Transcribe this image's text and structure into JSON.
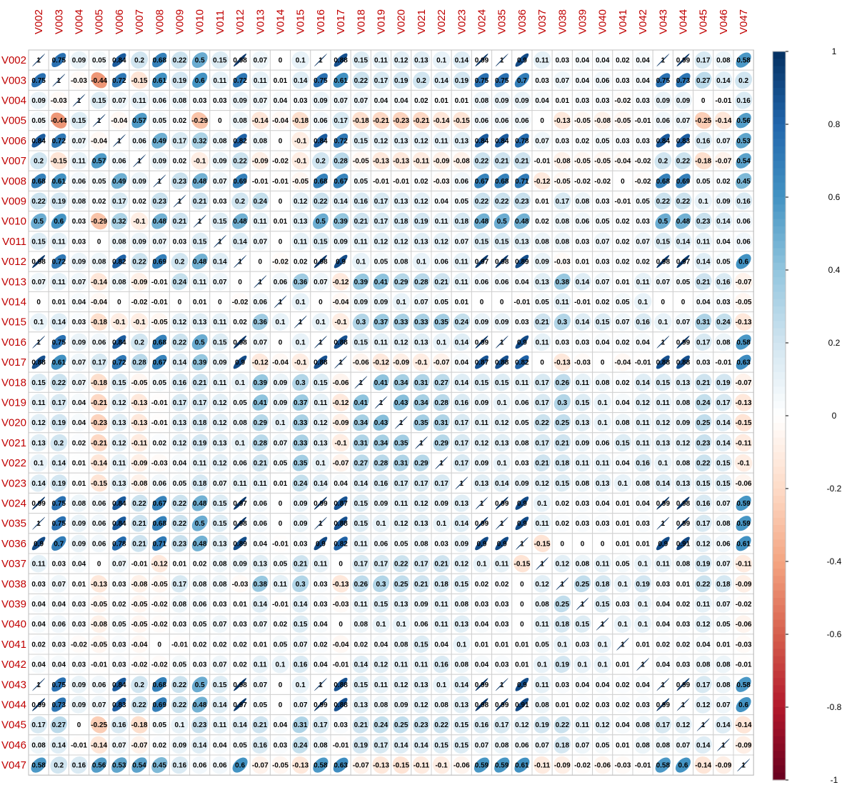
{
  "chart_data": {
    "type": "heatmap",
    "variables": [
      "V002",
      "V003",
      "V004",
      "V005",
      "V006",
      "V007",
      "V008",
      "V009",
      "V010",
      "V011",
      "V012",
      "V013",
      "V014",
      "V015",
      "V016",
      "V017",
      "V018",
      "V019",
      "V020",
      "V021",
      "V022",
      "V023",
      "V024",
      "V035",
      "V036",
      "V037",
      "V038",
      "V039",
      "V040",
      "V041",
      "V042",
      "V043",
      "V044",
      "V045",
      "V046",
      "V047"
    ],
    "matrix": [
      [
        1,
        0.75,
        0.09,
        0.05,
        0.84,
        0.2,
        0.68,
        0.22,
        0.5,
        0.15,
        0.98,
        0.07,
        0,
        0.1,
        1,
        0.88,
        0.15,
        0.11,
        0.12,
        0.13,
        0.1,
        0.14,
        0.99,
        1,
        0.9,
        0.11,
        0.03,
        0.04,
        0.04,
        0.02,
        0.04,
        1,
        0.99,
        0.17,
        0.08,
        0.58
      ],
      [
        0.75,
        1,
        -0.03,
        -0.44,
        0.72,
        -0.15,
        0.61,
        0.19,
        0.6,
        0.11,
        0.72,
        0.11,
        0.01,
        0.14,
        0.75,
        0.61,
        0.22,
        0.17,
        0.19,
        0.2,
        0.14,
        0.19,
        0.75,
        0.75,
        0.7,
        0.03,
        0.07,
        0.04,
        0.06,
        0.03,
        0.04,
        0.75,
        0.73,
        0.27,
        0.14,
        0.2
      ],
      [
        0.09,
        -0.03,
        1,
        0.15,
        0.07,
        0.11,
        0.06,
        0.08,
        0.03,
        0.03,
        0.09,
        0.07,
        0.04,
        0.03,
        0.09,
        0.07,
        0.07,
        0.04,
        0.04,
        0.02,
        0.01,
        0.01,
        0.08,
        0.09,
        0.09,
        0.04,
        0.01,
        0.03,
        0.03,
        -0.02,
        0.03,
        0.09,
        0.09,
        0,
        -0.01,
        0.16
      ],
      [
        0.05,
        -0.44,
        0.15,
        1,
        -0.04,
        0.57,
        0.05,
        0.02,
        -0.29,
        0,
        0.08,
        -0.14,
        -0.04,
        -0.18,
        0.06,
        0.17,
        -0.18,
        -0.21,
        -0.23,
        -0.21,
        -0.14,
        -0.15,
        0.06,
        0.06,
        0.06,
        0,
        -0.13,
        -0.05,
        -0.08,
        -0.05,
        -0.01,
        0.06,
        0.07,
        -0.25,
        -0.14,
        0.56
      ],
      [
        0.84,
        0.72,
        0.07,
        -0.04,
        1,
        0.06,
        0.49,
        0.17,
        0.32,
        0.08,
        0.82,
        0.08,
        0,
        -0.1,
        0.84,
        0.72,
        0.15,
        0.12,
        0.13,
        0.12,
        0.11,
        0.13,
        0.84,
        0.84,
        0.78,
        0.07,
        0.03,
        0.02,
        0.05,
        0.03,
        0.03,
        0.84,
        0.83,
        0.16,
        0.07,
        0.53
      ],
      [
        0.2,
        -0.15,
        0.11,
        0.57,
        0.06,
        1,
        0.09,
        0.02,
        -0.1,
        0.09,
        0.22,
        -0.09,
        -0.02,
        -0.1,
        0.2,
        0.28,
        -0.05,
        -0.13,
        -0.13,
        -0.11,
        -0.09,
        -0.08,
        0.22,
        0.21,
        0.21,
        -0.01,
        -0.08,
        -0.05,
        -0.05,
        -0.04,
        -0.02,
        0.2,
        0.22,
        -0.18,
        -0.07,
        0.54
      ],
      [
        0.68,
        0.61,
        0.06,
        0.05,
        0.49,
        0.09,
        1,
        0.23,
        0.48,
        0.07,
        0.69,
        -0.01,
        -0.01,
        -0.05,
        0.68,
        0.67,
        0.05,
        -0.01,
        -0.01,
        0.02,
        -0.03,
        0.06,
        0.67,
        0.68,
        0.71,
        -0.12,
        -0.05,
        -0.02,
        -0.02,
        0,
        -0.02,
        0.68,
        0.69,
        0.05,
        0.02,
        0.45
      ],
      [
        0.22,
        0.19,
        0.08,
        0.02,
        0.17,
        0.02,
        0.23,
        1,
        0.21,
        0.03,
        0.2,
        0.24,
        0,
        0.12,
        0.22,
        0.14,
        0.16,
        0.17,
        0.13,
        0.12,
        0.04,
        0.05,
        0.22,
        0.22,
        0.23,
        0.01,
        0.17,
        0.08,
        0.03,
        -0.01,
        0.05,
        0.22,
        0.22,
        0.1,
        0.09,
        0.16
      ],
      [
        0.5,
        0.6,
        0.03,
        -0.29,
        0.32,
        -0.1,
        0.48,
        0.21,
        1,
        0.15,
        0.48,
        0.11,
        0.01,
        0.13,
        0.5,
        0.39,
        0.21,
        0.17,
        0.18,
        0.19,
        0.11,
        0.18,
        0.48,
        0.5,
        0.48,
        0.02,
        0.08,
        0.06,
        0.05,
        0.02,
        0.03,
        0.5,
        0.48,
        0.23,
        0.14,
        0.06
      ],
      [
        0.15,
        0.11,
        0.03,
        0,
        0.08,
        0.09,
        0.07,
        0.03,
        0.15,
        1,
        0.14,
        0.07,
        0,
        0.11,
        0.15,
        0.09,
        0.11,
        0.12,
        0.12,
        0.13,
        0.12,
        0.07,
        0.15,
        0.15,
        0.13,
        0.08,
        0.08,
        0.03,
        0.07,
        0.02,
        0.07,
        0.15,
        0.14,
        0.11,
        0.04,
        0.06
      ],
      [
        0.98,
        0.72,
        0.09,
        0.08,
        0.82,
        0.22,
        0.69,
        0.2,
        0.48,
        0.14,
        1,
        0,
        -0.02,
        0.02,
        0.98,
        0.9,
        0.1,
        0.05,
        0.08,
        0.1,
        0.06,
        0.11,
        0.97,
        0.98,
        0.89,
        0.09,
        -0.03,
        0.01,
        0.03,
        0.02,
        0.02,
        0.98,
        0.97,
        0.14,
        0.05,
        0.6
      ],
      [
        0.07,
        0.11,
        0.07,
        -0.14,
        0.08,
        -0.09,
        -0.01,
        0.24,
        0.11,
        0.07,
        0,
        1,
        0.06,
        0.36,
        0.07,
        -0.12,
        0.39,
        0.41,
        0.29,
        0.28,
        0.21,
        0.11,
        0.06,
        0.06,
        0.04,
        0.13,
        0.38,
        0.14,
        0.07,
        0.01,
        0.11,
        0.07,
        0.05,
        0.21,
        0.16,
        -0.07
      ],
      [
        0,
        0.01,
        0.04,
        -0.04,
        0,
        -0.02,
        -0.01,
        0,
        0.01,
        0,
        -0.02,
        0.06,
        1,
        0.1,
        0,
        -0.04,
        0.09,
        0.09,
        0.1,
        0.07,
        0.05,
        0.01,
        0,
        0,
        -0.01,
        0.05,
        0.11,
        -0.01,
        0.02,
        0.05,
        0.1,
        0,
        0,
        0.04,
        0.03,
        -0.05
      ],
      [
        0.1,
        0.14,
        0.03,
        -0.18,
        -0.1,
        -0.1,
        -0.05,
        0.12,
        0.13,
        0.11,
        0.02,
        0.36,
        0.1,
        1,
        0.1,
        -0.1,
        0.3,
        0.37,
        0.33,
        0.33,
        0.35,
        0.24,
        0.09,
        0.09,
        0.03,
        0.21,
        0.3,
        0.14,
        0.15,
        0.07,
        0.16,
        0.1,
        0.07,
        0.31,
        0.24,
        -0.13
      ],
      [
        1,
        0.75,
        0.09,
        0.06,
        0.84,
        0.2,
        0.68,
        0.22,
        0.5,
        0.15,
        0.98,
        0.07,
        0,
        0.1,
        1,
        0.88,
        0.15,
        0.11,
        0.12,
        0.13,
        0.1,
        0.14,
        0.99,
        1,
        0.9,
        0.11,
        0.03,
        0.03,
        0.04,
        0.02,
        0.04,
        1,
        0.99,
        0.17,
        0.08,
        0.58
      ],
      [
        0.88,
        0.61,
        0.07,
        0.17,
        0.72,
        0.28,
        0.67,
        0.14,
        0.39,
        0.09,
        0.9,
        -0.12,
        -0.04,
        -0.1,
        0.88,
        1,
        -0.06,
        -0.12,
        -0.09,
        -0.1,
        -0.07,
        0.04,
        0.87,
        0.88,
        0.82,
        0,
        -0.13,
        -0.03,
        0,
        -0.04,
        -0.01,
        0.88,
        0.88,
        0.03,
        -0.01,
        0.63
      ],
      [
        0.15,
        0.22,
        0.07,
        -0.18,
        0.15,
        -0.05,
        0.05,
        0.16,
        0.21,
        0.11,
        0.1,
        0.39,
        0.09,
        0.3,
        0.15,
        -0.06,
        1,
        0.41,
        0.34,
        0.31,
        0.27,
        0.14,
        0.15,
        0.15,
        0.11,
        0.17,
        0.26,
        0.11,
        0.08,
        0.02,
        0.14,
        0.15,
        0.13,
        0.21,
        0.19,
        -0.07
      ],
      [
        0.11,
        0.17,
        0.04,
        -0.21,
        0.12,
        -0.13,
        -0.01,
        0.17,
        0.17,
        0.12,
        0.05,
        0.41,
        0.09,
        0.37,
        0.11,
        -0.12,
        0.41,
        1,
        0.43,
        0.34,
        0.28,
        0.16,
        0.09,
        0.1,
        0.06,
        0.17,
        0.3,
        0.15,
        0.1,
        0.04,
        0.12,
        0.11,
        0.08,
        0.24,
        0.17,
        -0.13
      ],
      [
        0.12,
        0.19,
        0.04,
        -0.23,
        0.13,
        -0.13,
        -0.01,
        0.13,
        0.18,
        0.12,
        0.08,
        0.29,
        0.1,
        0.33,
        0.12,
        -0.09,
        0.34,
        0.43,
        1,
        0.35,
        0.31,
        0.17,
        0.11,
        0.12,
        0.05,
        0.22,
        0.25,
        0.13,
        0.1,
        0.08,
        0.11,
        0.12,
        0.09,
        0.25,
        0.14,
        -0.15
      ],
      [
        0.13,
        0.2,
        0.02,
        -0.21,
        0.12,
        -0.11,
        0.02,
        0.12,
        0.19,
        0.13,
        0.1,
        0.28,
        0.07,
        0.33,
        0.13,
        -0.1,
        0.31,
        0.34,
        0.35,
        1,
        0.29,
        0.17,
        0.12,
        0.13,
        0.08,
        0.17,
        0.21,
        0.09,
        0.06,
        0.15,
        0.11,
        0.13,
        0.12,
        0.23,
        0.14,
        -0.11
      ],
      [
        0.1,
        0.14,
        0.01,
        -0.14,
        0.11,
        -0.09,
        -0.03,
        0.04,
        0.11,
        0.12,
        0.06,
        0.21,
        0.05,
        0.35,
        0.1,
        -0.07,
        0.27,
        0.28,
        0.31,
        0.29,
        1,
        0.17,
        0.09,
        0.1,
        0.03,
        0.21,
        0.18,
        0.11,
        0.11,
        0.04,
        0.16,
        0.1,
        0.08,
        0.22,
        0.15,
        -0.1
      ],
      [
        0.14,
        0.19,
        0.01,
        -0.15,
        0.13,
        -0.08,
        0.06,
        0.05,
        0.18,
        0.07,
        0.11,
        0.11,
        0.01,
        0.24,
        0.14,
        0.04,
        0.14,
        0.16,
        0.17,
        0.17,
        0.17,
        1,
        0.13,
        0.14,
        0.09,
        0.12,
        0.15,
        0.08,
        0.13,
        0.1,
        0.08,
        0.14,
        0.13,
        0.15,
        0.15,
        -0.06
      ],
      [
        0.99,
        0.75,
        0.08,
        0.06,
        0.84,
        0.22,
        0.67,
        0.22,
        0.48,
        0.15,
        0.97,
        0.06,
        0,
        0.09,
        0.99,
        0.87,
        0.15,
        0.09,
        0.11,
        0.12,
        0.09,
        0.13,
        1,
        0.99,
        0.9,
        0.1,
        0.02,
        0.03,
        0.04,
        0.01,
        0.04,
        0.99,
        0.98,
        0.16,
        0.07,
        0.59
      ],
      [
        1,
        0.75,
        0.09,
        0.06,
        0.84,
        0.21,
        0.68,
        0.22,
        0.5,
        0.15,
        0.98,
        0.06,
        0,
        0.09,
        1,
        0.88,
        0.15,
        0.1,
        0.12,
        0.13,
        0.1,
        0.14,
        0.99,
        1,
        0.9,
        0.11,
        0.02,
        0.03,
        0.03,
        0.01,
        0.03,
        1,
        0.99,
        0.17,
        0.08,
        0.59
      ],
      [
        0.9,
        0.7,
        0.09,
        0.06,
        0.78,
        0.21,
        0.71,
        0.23,
        0.48,
        0.13,
        0.89,
        0.04,
        -0.01,
        0.03,
        0.9,
        0.82,
        0.11,
        0.06,
        0.05,
        0.08,
        0.03,
        0.09,
        0.9,
        0.9,
        1,
        -0.15,
        0,
        0,
        0,
        0.01,
        0.01,
        0.9,
        0.91,
        0.12,
        0.06,
        0.61
      ],
      [
        0.11,
        0.03,
        0.04,
        0,
        0.07,
        -0.01,
        -0.12,
        0.01,
        0.02,
        0.08,
        0.09,
        0.13,
        0.05,
        0.21,
        0.11,
        0,
        0.17,
        0.17,
        0.22,
        0.17,
        0.21,
        0.12,
        0.1,
        0.11,
        -0.15,
        1,
        0.12,
        0.08,
        0.11,
        0.05,
        0.1,
        0.11,
        0.08,
        0.19,
        0.07,
        -0.11
      ],
      [
        0.03,
        0.07,
        0.01,
        -0.13,
        0.03,
        -0.08,
        -0.05,
        0.17,
        0.08,
        0.08,
        -0.03,
        0.38,
        0.11,
        0.3,
        0.03,
        -0.13,
        0.26,
        0.3,
        0.25,
        0.21,
        0.18,
        0.15,
        0.02,
        0.02,
        0,
        0.12,
        1,
        0.25,
        0.18,
        0.1,
        0.19,
        0.03,
        0.01,
        0.22,
        0.18,
        -0.09
      ],
      [
        0.04,
        0.04,
        0.03,
        -0.05,
        0.02,
        -0.05,
        -0.02,
        0.08,
        0.06,
        0.03,
        0.01,
        0.14,
        -0.01,
        0.14,
        0.03,
        -0.03,
        0.11,
        0.15,
        0.13,
        0.09,
        0.11,
        0.08,
        0.03,
        0.03,
        0,
        0.08,
        0.25,
        1,
        0.15,
        0.03,
        0.1,
        0.04,
        0.02,
        0.11,
        0.07,
        -0.02
      ],
      [
        0.04,
        0.06,
        0.03,
        -0.08,
        0.05,
        -0.05,
        -0.02,
        0.03,
        0.05,
        0.07,
        0.03,
        0.07,
        0.02,
        0.15,
        0.04,
        0,
        0.08,
        0.1,
        0.1,
        0.06,
        0.11,
        0.13,
        0.04,
        0.03,
        0,
        0.11,
        0.18,
        0.15,
        1,
        0.1,
        0.1,
        0.04,
        0.03,
        0.12,
        0.05,
        -0.06
      ],
      [
        0.02,
        0.03,
        -0.02,
        -0.05,
        0.03,
        -0.04,
        0,
        -0.01,
        0.02,
        0.02,
        0.02,
        0.01,
        0.05,
        0.07,
        0.02,
        -0.04,
        0.02,
        0.04,
        0.08,
        0.15,
        0.04,
        0.1,
        0.01,
        0.01,
        0.01,
        0.05,
        0.1,
        0.03,
        0.1,
        1,
        0.01,
        0.02,
        0.02,
        0.04,
        0.01,
        -0.03
      ],
      [
        0.04,
        0.04,
        0.03,
        -0.01,
        0.03,
        -0.02,
        -0.02,
        0.05,
        0.03,
        0.07,
        0.02,
        0.11,
        0.1,
        0.16,
        0.04,
        -0.01,
        0.14,
        0.12,
        0.11,
        0.11,
        0.16,
        0.08,
        0.04,
        0.03,
        0.01,
        0.1,
        0.19,
        0.1,
        0.1,
        0.01,
        1,
        0.04,
        0.03,
        0.08,
        0.08,
        -0.01
      ],
      [
        1,
        0.75,
        0.09,
        0.06,
        0.84,
        0.2,
        0.68,
        0.22,
        0.5,
        0.15,
        0.98,
        0.07,
        0,
        0.1,
        1,
        0.88,
        0.15,
        0.11,
        0.12,
        0.13,
        0.1,
        0.14,
        0.99,
        1,
        0.9,
        0.11,
        0.03,
        0.04,
        0.04,
        0.02,
        0.04,
        1,
        0.99,
        0.17,
        0.08,
        0.58
      ],
      [
        0.99,
        0.73,
        0.09,
        0.07,
        0.83,
        0.22,
        0.69,
        0.22,
        0.48,
        0.14,
        0.97,
        0.05,
        0,
        0.07,
        0.99,
        0.88,
        0.13,
        0.08,
        0.09,
        0.12,
        0.08,
        0.13,
        0.98,
        0.99,
        0.91,
        0.08,
        0.01,
        0.02,
        0.03,
        0.02,
        0.03,
        0.99,
        1,
        0.12,
        0.07,
        0.6
      ],
      [
        0.17,
        0.27,
        0,
        -0.25,
        0.16,
        -0.18,
        0.05,
        0.1,
        0.23,
        0.11,
        0.14,
        0.21,
        0.04,
        0.31,
        0.17,
        0.03,
        0.21,
        0.24,
        0.25,
        0.23,
        0.22,
        0.15,
        0.16,
        0.17,
        0.12,
        0.19,
        0.22,
        0.11,
        0.12,
        0.04,
        0.08,
        0.17,
        0.12,
        1,
        0.14,
        -0.14
      ],
      [
        0.08,
        0.14,
        -0.01,
        -0.14,
        0.07,
        -0.07,
        0.02,
        0.09,
        0.14,
        0.04,
        0.05,
        0.16,
        0.03,
        0.24,
        0.08,
        -0.01,
        0.19,
        0.17,
        0.14,
        0.14,
        0.15,
        0.15,
        0.07,
        0.08,
        0.06,
        0.07,
        0.18,
        0.07,
        0.05,
        0.01,
        0.08,
        0.08,
        0.07,
        0.14,
        1,
        -0.09
      ],
      [
        0.58,
        0.2,
        0.16,
        0.56,
        0.53,
        0.54,
        0.45,
        0.16,
        0.06,
        0.06,
        0.6,
        -0.07,
        -0.05,
        -0.13,
        0.58,
        0.63,
        -0.07,
        -0.13,
        -0.15,
        -0.11,
        -0.1,
        -0.06,
        0.59,
        0.59,
        0.61,
        -0.11,
        -0.09,
        -0.02,
        -0.06,
        -0.03,
        -0.01,
        0.58,
        0.6,
        -0.14,
        -0.09,
        1
      ]
    ],
    "colorbar_ticks": [
      "1",
      "0.8",
      "0.6",
      "0.4",
      "0.2",
      "0",
      "-0.2",
      "-0.4",
      "-0.6",
      "-0.8",
      "-1"
    ],
    "value_range": [
      -1,
      1
    ],
    "colors": {
      "negative": "#67001F",
      "mid": "#FFFFFF",
      "positive": "#053061",
      "label": "#C00000",
      "grid": "#D0D0D0"
    }
  }
}
